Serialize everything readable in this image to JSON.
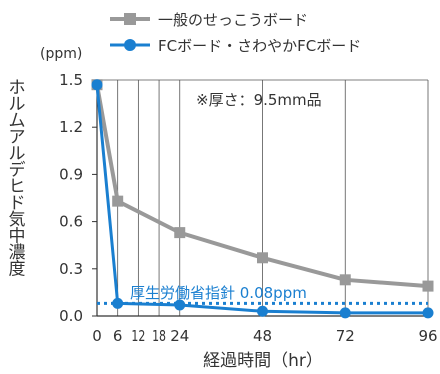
{
  "chart_data": {
    "type": "line",
    "x_ticks": [
      0,
      6,
      12,
      18,
      24,
      48,
      72,
      96
    ],
    "y_ticks": [
      0.0,
      0.3,
      0.6,
      0.9,
      1.2,
      1.5
    ],
    "y_tick_labels": [
      "0.0",
      "0.3",
      "0.6",
      "0.9",
      "1.2",
      "1.5"
    ],
    "x_tick_labels": [
      "0",
      "6",
      "12",
      "18",
      "24",
      "48",
      "72",
      "96"
    ],
    "xlim": [
      0,
      96
    ],
    "ylim": [
      0,
      1.5
    ],
    "xlabel": "経過時間（hr）",
    "ylabel": "ホルムアルデヒド気中濃度",
    "y_unit": "(ppm)",
    "annotation": "※厚さ：9.5mm品",
    "reference_line": {
      "label": "厚生労働省指針 0.08ppm",
      "value": 0.08,
      "color": "#1a7fd0"
    },
    "series": [
      {
        "name": "一般のせっこうボード",
        "color": "#999999",
        "marker": "square",
        "x": [
          0,
          6,
          24,
          48,
          72,
          96
        ],
        "y": [
          1.47,
          0.73,
          0.53,
          0.37,
          0.23,
          0.19
        ]
      },
      {
        "name": "FCボード・さわやかFCボード",
        "color": "#1a7fd0",
        "marker": "circle",
        "x": [
          0,
          6,
          24,
          48,
          72,
          96
        ],
        "y": [
          1.47,
          0.08,
          0.07,
          0.03,
          0.02,
          0.02
        ]
      }
    ],
    "grid": {
      "vertical": true,
      "horizontal": false
    },
    "legend_position": "top"
  }
}
